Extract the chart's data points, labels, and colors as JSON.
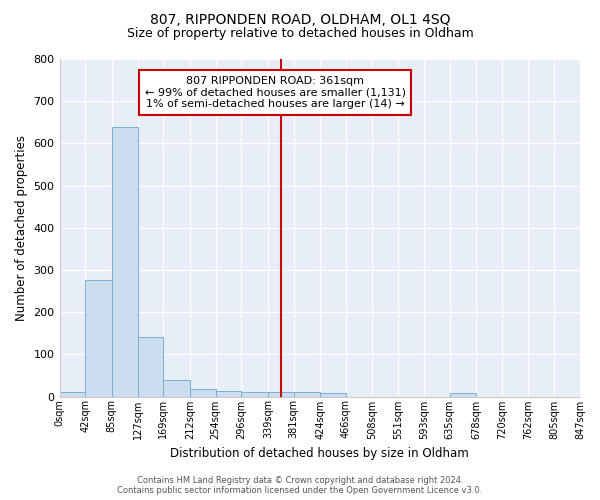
{
  "title": "807, RIPPONDEN ROAD, OLDHAM, OL1 4SQ",
  "subtitle": "Size of property relative to detached houses in Oldham",
  "xlabel": "Distribution of detached houses by size in Oldham",
  "ylabel": "Number of detached properties",
  "bar_color": "#ccddf0",
  "bar_edge_color": "#7bafd4",
  "background_color": "#e8eef8",
  "fig_background_color": "#ffffff",
  "grid_color": "#ffffff",
  "bin_edges": [
    0,
    42,
    85,
    127,
    169,
    212,
    254,
    296,
    339,
    381,
    424,
    466,
    508,
    551,
    593,
    635,
    678,
    720,
    762,
    805,
    847
  ],
  "bar_heights": [
    10,
    275,
    640,
    140,
    38,
    18,
    12,
    10,
    10,
    10,
    8,
    0,
    0,
    0,
    0,
    8,
    0,
    0,
    0,
    0
  ],
  "red_line_x": 361,
  "annotation_text": "807 RIPPONDEN ROAD: 361sqm\n← 99% of detached houses are smaller (1,131)\n1% of semi-detached houses are larger (14) →",
  "annotation_box_color": "#ffffff",
  "annotation_border_color": "#cc0000",
  "ylim": [
    0,
    800
  ],
  "yticks": [
    0,
    100,
    200,
    300,
    400,
    500,
    600,
    700,
    800
  ],
  "footer_text": "Contains HM Land Registry data © Crown copyright and database right 2024.\nContains public sector information licensed under the Open Government Licence v3.0.",
  "tick_labels": [
    "0sqm",
    "42sqm",
    "85sqm",
    "127sqm",
    "169sqm",
    "212sqm",
    "254sqm",
    "296sqm",
    "339sqm",
    "381sqm",
    "424sqm",
    "466sqm",
    "508sqm",
    "551sqm",
    "593sqm",
    "635sqm",
    "678sqm",
    "720sqm",
    "762sqm",
    "805sqm",
    "847sqm"
  ]
}
